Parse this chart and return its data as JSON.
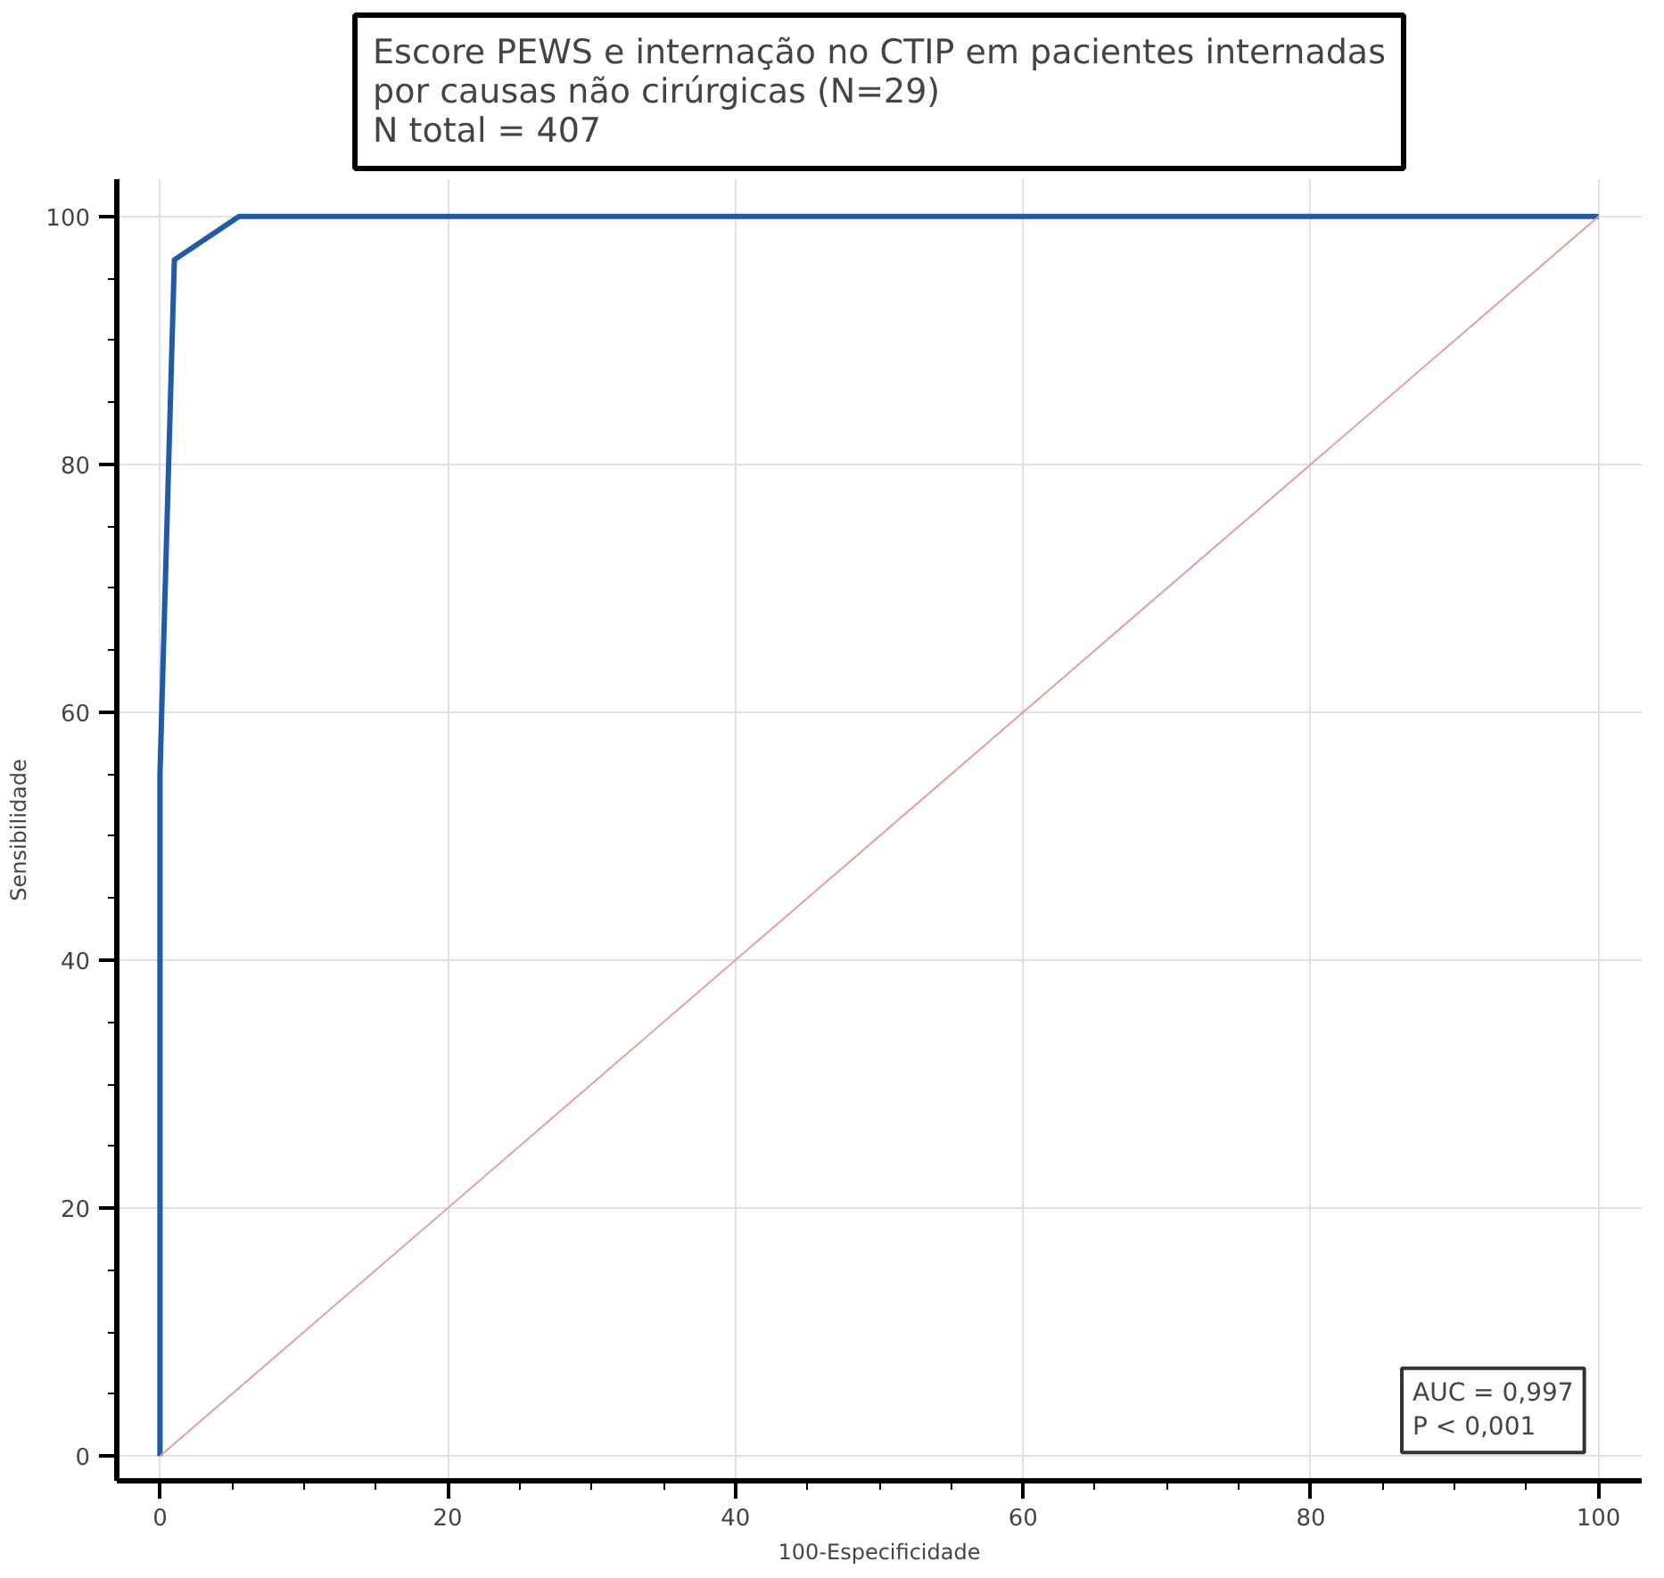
{
  "chart_data": {
    "type": "line",
    "title": "Escore PEWS e internação no CTIP em pacientes internadas\npor causas não cirúrgicas  (N=29)\nN total = 407",
    "xlabel": "100-Especificidade",
    "ylabel": "Sensibilidade",
    "series": [
      {
        "x": [
          0,
          0,
          1,
          5.5,
          100
        ],
        "values": [
          0,
          55,
          96.5,
          100,
          100
        ],
        "color": "#1f5ba8"
      },
      {
        "x": [
          0,
          100
        ],
        "values": [
          0,
          100
        ],
        "color": "#e0a0a0"
      }
    ],
    "xlim": [
      -3,
      103
    ],
    "ylim": [
      -2,
      103
    ],
    "xticks": [
      0,
      20,
      40,
      60,
      80,
      100
    ],
    "yticks": [
      0,
      20,
      40,
      60,
      80,
      100
    ],
    "annotations": [
      "AUC = 0,997",
      "P < 0,001"
    ],
    "grid": true
  }
}
